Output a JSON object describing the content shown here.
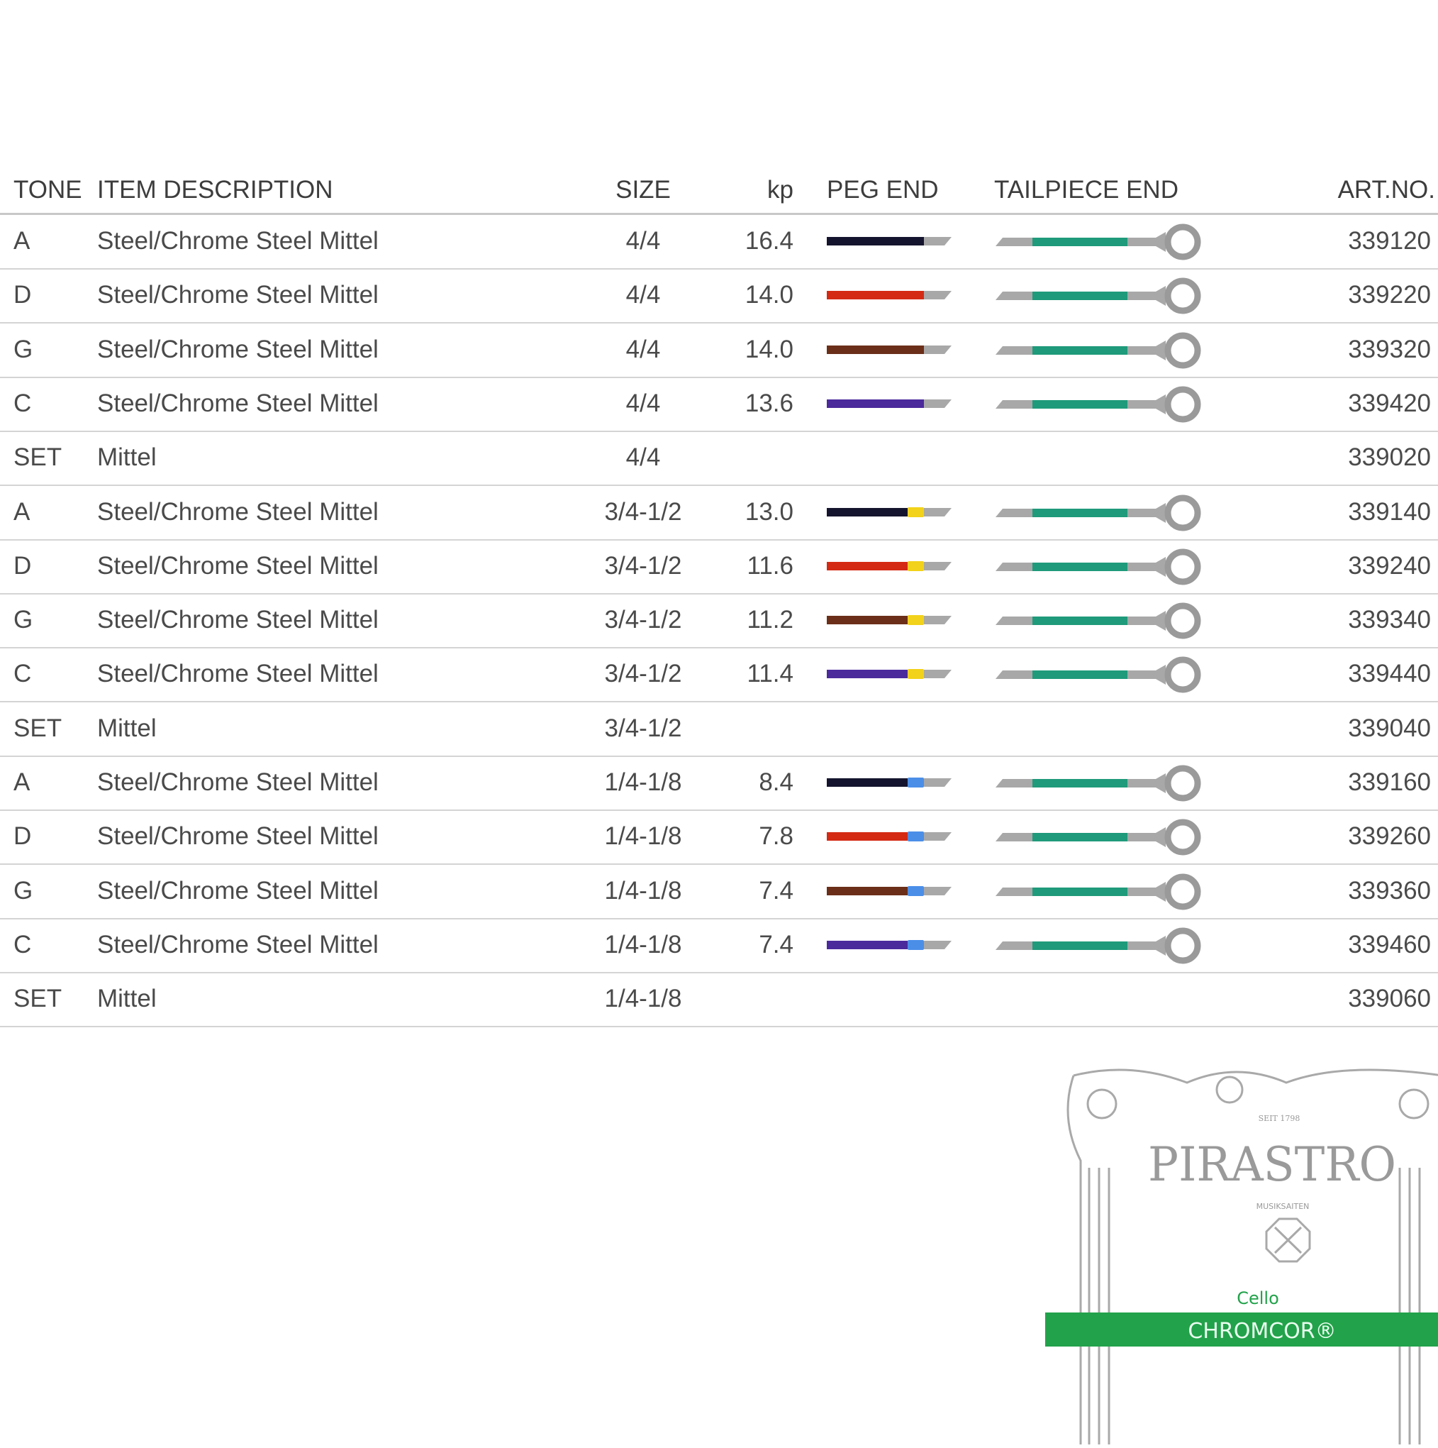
{
  "headers": {
    "tone": "TONE",
    "desc": "ITEM DESCRIPTION",
    "size": "SIZE",
    "kp": "kp",
    "peg": "PEG END",
    "tail": "TAILPIECE END",
    "art": "ART.NO."
  },
  "colors": {
    "A": "#14142e",
    "D": "#d42a14",
    "G": "#6b2e18",
    "C": "#4b2a9c",
    "tail_green": "#1f9a7a",
    "gray": "#a8a8a8",
    "marker_yellow": "#f2d21a",
    "marker_blue": "#4a8ee8",
    "brand_green": "#22a24a"
  },
  "rows": [
    {
      "tone": "A",
      "desc": "Steel/Chrome Steel Mittel",
      "size": "4/4",
      "kp": "16.4",
      "art": "339120",
      "peg": "A",
      "marker": null
    },
    {
      "tone": "D",
      "desc": "Steel/Chrome Steel Mittel",
      "size": "4/4",
      "kp": "14.0",
      "art": "339220",
      "peg": "D",
      "marker": null
    },
    {
      "tone": "G",
      "desc": "Steel/Chrome Steel Mittel",
      "size": "4/4",
      "kp": "14.0",
      "art": "339320",
      "peg": "G",
      "marker": null
    },
    {
      "tone": "C",
      "desc": "Steel/Chrome Steel Mittel",
      "size": "4/4",
      "kp": "13.6",
      "art": "339420",
      "peg": "C",
      "marker": null
    },
    {
      "tone": "SET",
      "desc": "Mittel",
      "size": "4/4",
      "kp": "",
      "art": "339020",
      "peg": null,
      "marker": null
    },
    {
      "tone": "A",
      "desc": "Steel/Chrome Steel Mittel",
      "size": "3/4-1/2",
      "kp": "13.0",
      "art": "339140",
      "peg": "A",
      "marker": "yellow"
    },
    {
      "tone": "D",
      "desc": "Steel/Chrome Steel Mittel",
      "size": "3/4-1/2",
      "kp": "11.6",
      "art": "339240",
      "peg": "D",
      "marker": "yellow"
    },
    {
      "tone": "G",
      "desc": "Steel/Chrome Steel Mittel",
      "size": "3/4-1/2",
      "kp": "11.2",
      "art": "339340",
      "peg": "G",
      "marker": "yellow"
    },
    {
      "tone": "C",
      "desc": "Steel/Chrome Steel Mittel",
      "size": "3/4-1/2",
      "kp": "11.4",
      "art": "339440",
      "peg": "C",
      "marker": "yellow"
    },
    {
      "tone": "SET",
      "desc": "Mittel",
      "size": "3/4-1/2",
      "kp": "",
      "art": "339040",
      "peg": null,
      "marker": null
    },
    {
      "tone": "A",
      "desc": "Steel/Chrome Steel Mittel",
      "size": "1/4-1/8",
      "kp": "8.4",
      "art": "339160",
      "peg": "A",
      "marker": "blue"
    },
    {
      "tone": "D",
      "desc": "Steel/Chrome Steel Mittel",
      "size": "1/4-1/8",
      "kp": "7.8",
      "art": "339260",
      "peg": "D",
      "marker": "blue"
    },
    {
      "tone": "G",
      "desc": "Steel/Chrome Steel Mittel",
      "size": "1/4-1/8",
      "kp": "7.4",
      "art": "339360",
      "peg": "G",
      "marker": "blue"
    },
    {
      "tone": "C",
      "desc": "Steel/Chrome Steel Mittel",
      "size": "1/4-1/8",
      "kp": "7.4",
      "art": "339460",
      "peg": "C",
      "marker": "blue"
    },
    {
      "tone": "SET",
      "desc": "Mittel",
      "size": "1/4-1/8",
      "kp": "",
      "art": "339060",
      "peg": null,
      "marker": null
    }
  ],
  "logo": {
    "since": "SEIT 1798",
    "brand": "PIRASTRO",
    "sub": "MUSIKSAITEN",
    "instrument": "Cello",
    "product": "CHROMCOR®"
  }
}
